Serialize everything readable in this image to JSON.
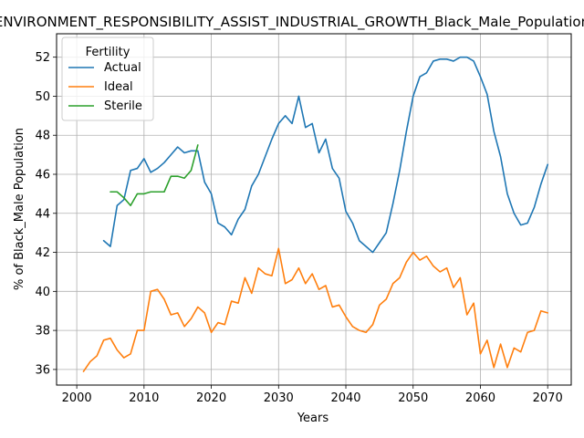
{
  "chart_data": {
    "type": "line",
    "title": "ENVIRONMENT_RESPONSIBILITY_ASSIST_INDUSTRIAL_GROWTH_Black_Male_Population",
    "xlabel": "Years",
    "ylabel": "% of Black_Male Population",
    "xlim": [
      1997,
      2073.5
    ],
    "ylim": [
      35.2,
      53.2
    ],
    "xticks": [
      2000,
      2010,
      2020,
      2030,
      2040,
      2050,
      2060,
      2070
    ],
    "yticks": [
      36,
      38,
      40,
      42,
      44,
      46,
      48,
      50,
      52
    ],
    "grid": true,
    "legend": {
      "title": "Fertility",
      "position": "top-left"
    },
    "series": [
      {
        "name": "Actual",
        "color": "#1f77b4",
        "x": [
          2004,
          2005,
          2006,
          2007,
          2008,
          2009,
          2010,
          2011,
          2012,
          2013,
          2014,
          2015,
          2016,
          2017,
          2018,
          2019,
          2020,
          2021,
          2022,
          2023,
          2024,
          2025,
          2026,
          2027,
          2028,
          2029,
          2030,
          2031,
          2032,
          2033,
          2034,
          2035,
          2036,
          2037,
          2038,
          2039,
          2040,
          2041,
          2042,
          2043,
          2044,
          2045,
          2046,
          2047,
          2048,
          2049,
          2050,
          2051,
          2052,
          2053,
          2054,
          2055,
          2056,
          2057,
          2058,
          2059,
          2060,
          2061,
          2062,
          2063,
          2064,
          2065,
          2066,
          2067,
          2068,
          2069,
          2070
        ],
        "y": [
          42.6,
          42.3,
          44.4,
          44.7,
          46.2,
          46.3,
          46.8,
          46.1,
          46.3,
          46.6,
          47.0,
          47.4,
          47.1,
          47.2,
          47.2,
          45.6,
          45.0,
          43.5,
          43.3,
          42.9,
          43.7,
          44.2,
          45.4,
          46.0,
          46.9,
          47.8,
          48.6,
          49.0,
          48.6,
          50.0,
          48.4,
          48.6,
          47.1,
          47.8,
          46.3,
          45.8,
          44.1,
          43.5,
          42.6,
          42.3,
          42.0,
          42.5,
          43.0,
          44.5,
          46.2,
          48.2,
          50.0,
          51.0,
          51.2,
          51.8,
          51.9,
          51.9,
          51.8,
          52.0,
          52.0,
          51.8,
          51.0,
          50.1,
          48.2,
          46.9,
          45.0,
          44.0,
          43.4,
          43.5,
          44.3,
          45.5,
          46.5
        ]
      },
      {
        "name": "Ideal",
        "color": "#ff7f0e",
        "x": [
          2001,
          2002,
          2003,
          2004,
          2005,
          2006,
          2007,
          2008,
          2009,
          2010,
          2011,
          2012,
          2013,
          2014,
          2015,
          2016,
          2017,
          2018,
          2019,
          2020,
          2021,
          2022,
          2023,
          2024,
          2025,
          2026,
          2027,
          2028,
          2029,
          2030,
          2031,
          2032,
          2033,
          2034,
          2035,
          2036,
          2037,
          2038,
          2039,
          2040,
          2041,
          2042,
          2043,
          2044,
          2045,
          2046,
          2047,
          2048,
          2049,
          2050,
          2051,
          2052,
          2053,
          2054,
          2055,
          2056,
          2057,
          2058,
          2059,
          2060,
          2061,
          2062,
          2063,
          2064,
          2065,
          2066,
          2067,
          2068,
          2069,
          2070
        ],
        "y": [
          35.9,
          36.4,
          36.7,
          37.5,
          37.6,
          37.0,
          36.6,
          36.8,
          38.0,
          38.0,
          40.0,
          40.1,
          39.6,
          38.8,
          38.9,
          38.2,
          38.6,
          39.2,
          38.9,
          37.9,
          38.4,
          38.3,
          39.5,
          39.4,
          40.7,
          39.9,
          41.2,
          40.9,
          40.8,
          42.2,
          40.4,
          40.6,
          41.2,
          40.4,
          40.9,
          40.1,
          40.3,
          39.2,
          39.3,
          38.7,
          38.2,
          38.0,
          37.9,
          38.3,
          39.3,
          39.6,
          40.4,
          40.7,
          41.5,
          42.0,
          41.6,
          41.8,
          41.3,
          41.0,
          41.2,
          40.2,
          40.7,
          38.8,
          39.4,
          36.8,
          37.5,
          36.1,
          37.3,
          36.1,
          37.1,
          36.9,
          37.9,
          38.0,
          39.0,
          38.9
        ]
      },
      {
        "name": "Sterile",
        "color": "#2ca02c",
        "x": [
          2005,
          2006,
          2007,
          2008,
          2009,
          2010,
          2011,
          2012,
          2013,
          2014,
          2015,
          2016,
          2017,
          2018
        ],
        "y": [
          45.1,
          45.1,
          44.8,
          44.4,
          45.0,
          45.0,
          45.1,
          45.1,
          45.1,
          45.9,
          45.9,
          45.8,
          46.2,
          47.5
        ]
      }
    ]
  }
}
